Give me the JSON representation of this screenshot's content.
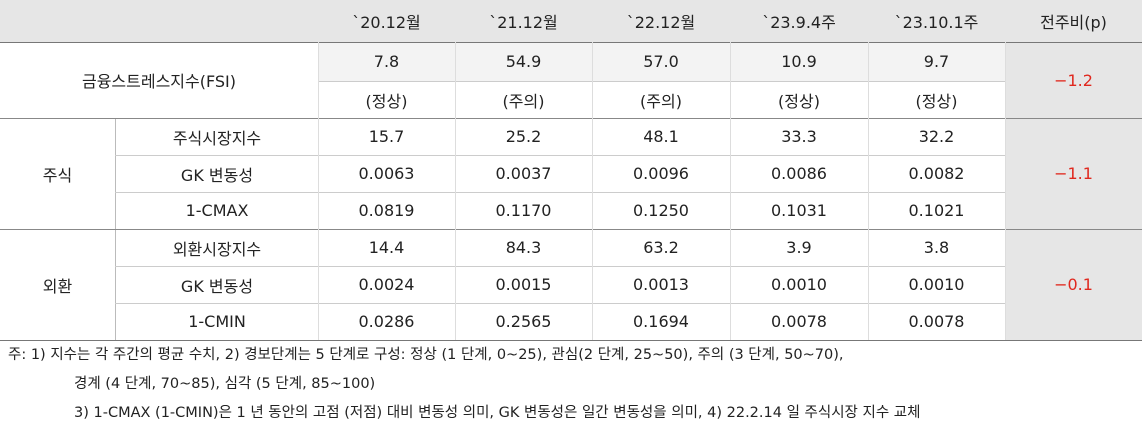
{
  "header": {
    "columns": [
      "`20.12월",
      "`21.12월",
      "`22.12월",
      "`23.9.4주",
      "`23.10.1주"
    ],
    "change": "전주비(p)"
  },
  "fsi": {
    "label": "금융스트레스지수(FSI)",
    "values": [
      "7.8",
      "54.9",
      "57.0",
      "10.9",
      "9.7"
    ],
    "status": [
      "(정상)",
      "(주의)",
      "(주의)",
      "(정상)",
      "(정상)"
    ],
    "change": "−1.2"
  },
  "groups": [
    {
      "label": "주식",
      "change": "−1.1",
      "rows": [
        {
          "label": "주식시장지수",
          "values": [
            "15.7",
            "25.2",
            "48.1",
            "33.3",
            "32.2"
          ]
        },
        {
          "label": "GK 변동성",
          "values": [
            "0.0063",
            "0.0037",
            "0.0096",
            "0.0086",
            "0.0082"
          ]
        },
        {
          "label": "1-CMAX",
          "values": [
            "0.0819",
            "0.1170",
            "0.1250",
            "0.1031",
            "0.1021"
          ]
        }
      ]
    },
    {
      "label": "외환",
      "change": "−0.1",
      "rows": [
        {
          "label": "외환시장지수",
          "values": [
            "14.4",
            "84.3",
            "63.2",
            "3.9",
            "3.8"
          ]
        },
        {
          "label": "GK 변동성",
          "values": [
            "0.0024",
            "0.0015",
            "0.0013",
            "0.0010",
            "0.0010"
          ]
        },
        {
          "label": "1-CMIN",
          "values": [
            "0.0286",
            "0.2565",
            "0.1694",
            "0.0078",
            "0.0078"
          ]
        }
      ]
    }
  ],
  "notes": [
    "주: 1) 지수는 각 주간의 평균 수치, 2) 경보단계는 5 단계로 구성: 정상 (1 단계, 0~25), 관심(2 단계, 25~50), 주의 (3 단계, 50~70),",
    "경계 (4 단계, 70~85), 심각 (5 단계, 85~100)",
    "3) 1-CMAX (1-CMIN)은 1 년 동안의 고점 (저점) 대비 변동성 의미, GK 변동성은 일간 변동성을 의미, 4) 22.2.14 일 주식시장 지수 교체"
  ]
}
